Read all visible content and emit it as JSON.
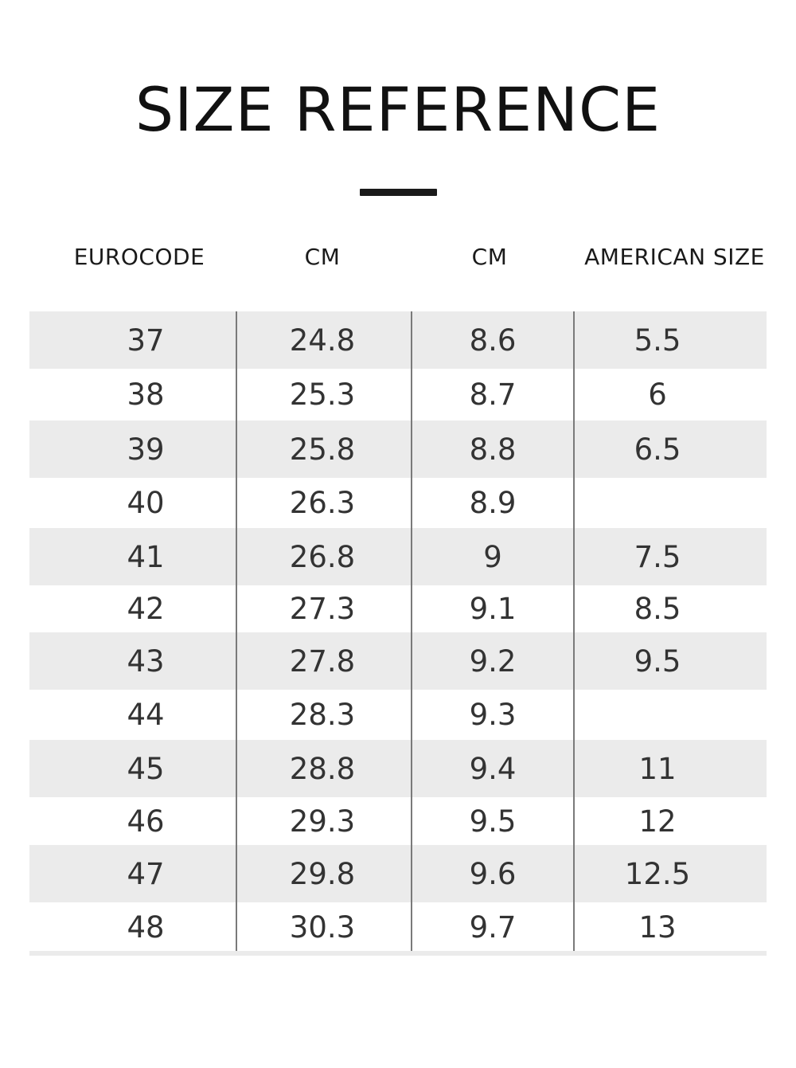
{
  "title": "SIZE REFERENCE",
  "columns": [
    "EUROCODE",
    "CM",
    "CM",
    "AMERICAN SIZE"
  ],
  "rows": [
    [
      "37",
      "24.8",
      "8.6",
      "5.5"
    ],
    [
      "38",
      "25.3",
      "8.7",
      "6"
    ],
    [
      "39",
      "25.8",
      "8.8",
      "6.5"
    ],
    [
      "40",
      "26.3",
      "8.9",
      ""
    ],
    [
      "41",
      "26.8",
      "9",
      "7.5"
    ],
    [
      "42",
      "27.3",
      "9.1",
      "8.5"
    ],
    [
      "43",
      "27.8",
      "9.2",
      "9.5"
    ],
    [
      "44",
      "28.3",
      "9.3",
      ""
    ],
    [
      "45",
      "28.8",
      "9.4",
      "11"
    ],
    [
      "46",
      "29.3",
      "9.5",
      "12"
    ],
    [
      "47",
      "29.8",
      "9.6",
      "12.5"
    ],
    [
      "48",
      "30.3",
      "9.7",
      "13"
    ]
  ],
  "colors": {
    "shaded_row": "#ebebeb",
    "text": "#333333",
    "divider": "#1a1a1a"
  }
}
